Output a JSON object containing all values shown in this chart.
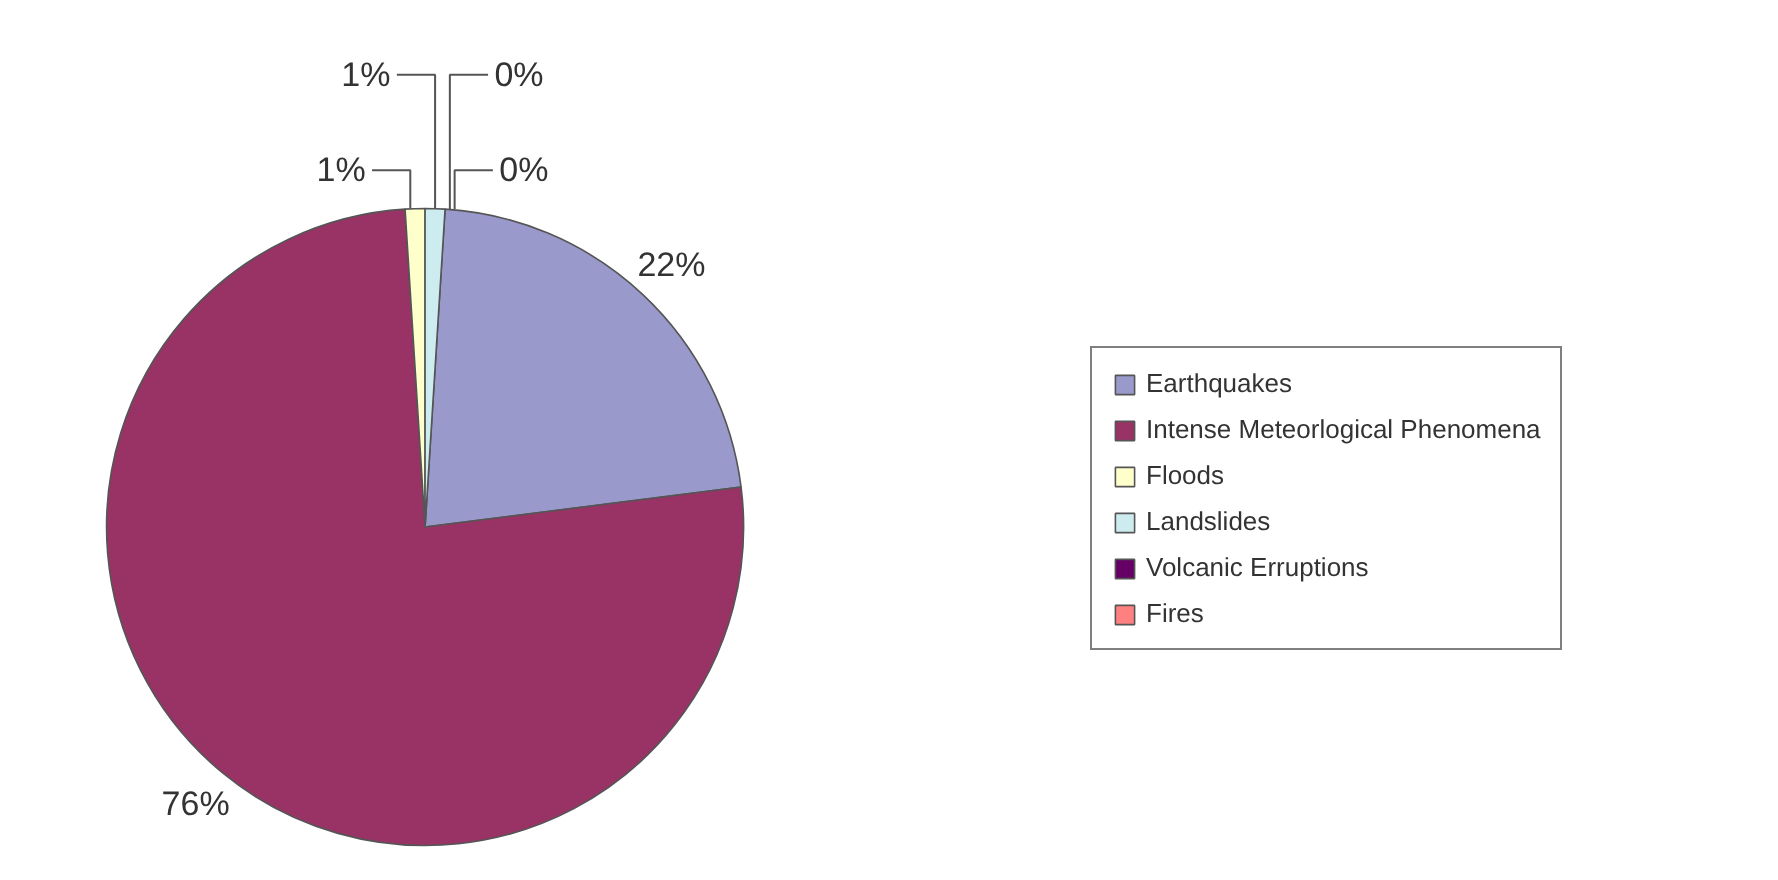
{
  "chart_data": {
    "type": "pie",
    "categories": [
      "Earthquakes",
      "Intense Meteorlogical Phenomena",
      "Floods",
      "Landslides",
      "Volcanic Erruptions",
      "Fires"
    ],
    "values": [
      22,
      76,
      1,
      1,
      0,
      0
    ],
    "colors": [
      "#9999cc",
      "#993366",
      "#ffffcc",
      "#ccecf0",
      "#660066",
      "#ff8080"
    ],
    "value_labels": [
      "22%",
      "76%",
      "1%",
      "1%",
      "0%",
      "0%"
    ],
    "legend": "right"
  }
}
